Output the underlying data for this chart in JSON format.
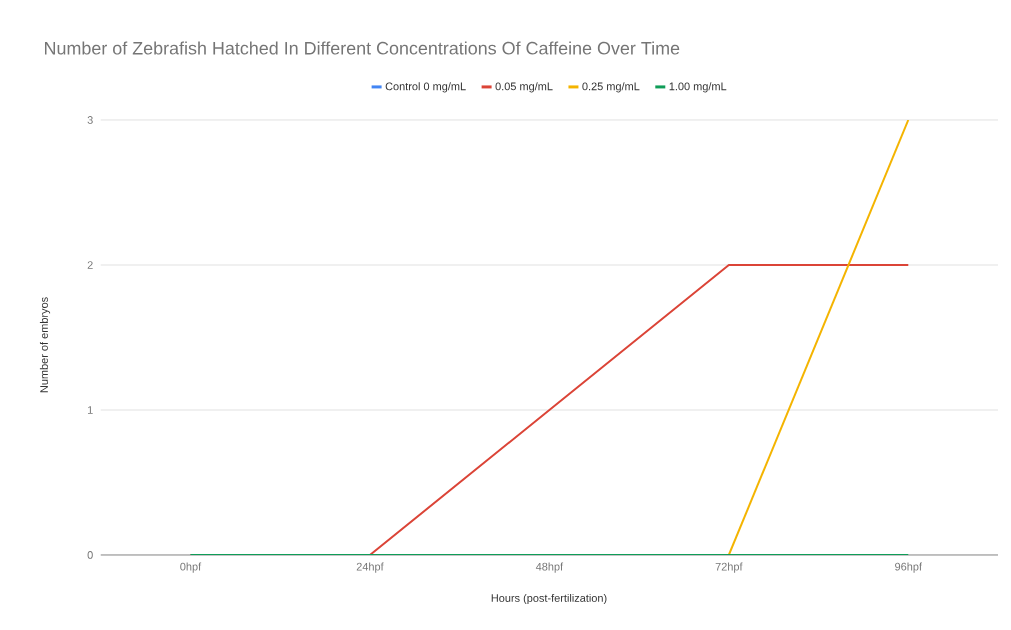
{
  "chart_data": {
    "type": "line",
    "title": "Number of Zebrafish Hatched In Different Concentrations Of Caffeine Over Time",
    "xlabel": "Hours (post-fertilization)",
    "ylabel": "Number of embryos",
    "categories": [
      "0hpf",
      "24hpf",
      "48hpf",
      "72hpf",
      "96hpf"
    ],
    "series": [
      {
        "name": "Control 0 mg/mL",
        "color": "#4285f4",
        "values": [
          null,
          null,
          null,
          null,
          null
        ]
      },
      {
        "name": "0.05 mg/mL",
        "color": "#db4437",
        "values": [
          0,
          0,
          1,
          2,
          2
        ]
      },
      {
        "name": "0.25 mg/mL",
        "color": "#f4b400",
        "values": [
          null,
          null,
          null,
          0,
          3
        ]
      },
      {
        "name": "1.00 mg/mL",
        "color": "#0f9d58",
        "values": [
          0,
          0,
          0,
          0,
          0
        ]
      }
    ],
    "ylim": [
      0,
      3
    ],
    "yticks": [
      0,
      1,
      2,
      3
    ],
    "grid": "y",
    "legend": "top",
    "marker": "none",
    "line_style": "solid"
  }
}
